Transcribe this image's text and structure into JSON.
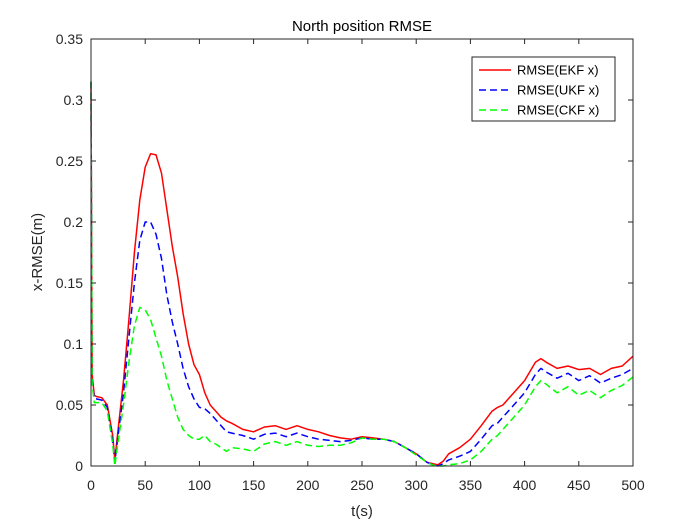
{
  "chart_data": {
    "type": "line",
    "title": "North position RMSE",
    "xlabel": "t(s)",
    "ylabel": "x-RMSE(m)",
    "xlim": [
      0,
      500
    ],
    "ylim": [
      0,
      0.35
    ],
    "xticks": [
      0,
      50,
      100,
      150,
      200,
      250,
      300,
      350,
      400,
      450,
      500
    ],
    "xtick_labels": [
      "0",
      "50",
      "100",
      "150",
      "200",
      "250",
      "300",
      "350",
      "400",
      "450",
      "500"
    ],
    "yticks": [
      0,
      0.05,
      0.1,
      0.15,
      0.2,
      0.25,
      0.3,
      0.35
    ],
    "ytick_labels": [
      "0",
      "0.05",
      "0.1",
      "0.15",
      "0.2",
      "0.25",
      "0.3",
      "0.35"
    ],
    "grid": false,
    "legend_position": "top-right",
    "series": [
      {
        "name": "RMSE(EKF x)",
        "color": "#ff0000",
        "dash": "solid",
        "x": [
          0,
          1,
          3,
          5,
          10,
          15,
          20,
          22,
          25,
          30,
          35,
          40,
          45,
          50,
          55,
          60,
          65,
          70,
          75,
          80,
          85,
          90,
          95,
          100,
          105,
          110,
          115,
          120,
          125,
          130,
          140,
          150,
          160,
          170,
          180,
          190,
          200,
          210,
          220,
          230,
          240,
          250,
          260,
          270,
          280,
          290,
          300,
          310,
          315,
          320,
          325,
          330,
          340,
          350,
          360,
          370,
          375,
          380,
          390,
          400,
          410,
          415,
          420,
          430,
          440,
          450,
          460,
          470,
          480,
          490,
          500
        ],
        "y": [
          0.315,
          0.075,
          0.058,
          0.057,
          0.056,
          0.05,
          0.025,
          0.005,
          0.03,
          0.07,
          0.12,
          0.175,
          0.218,
          0.245,
          0.256,
          0.255,
          0.24,
          0.21,
          0.18,
          0.155,
          0.125,
          0.1,
          0.083,
          0.075,
          0.06,
          0.05,
          0.045,
          0.04,
          0.037,
          0.035,
          0.03,
          0.028,
          0.032,
          0.033,
          0.03,
          0.033,
          0.03,
          0.028,
          0.025,
          0.023,
          0.022,
          0.024,
          0.023,
          0.022,
          0.02,
          0.015,
          0.01,
          0.003,
          0.002,
          0.001,
          0.004,
          0.01,
          0.015,
          0.022,
          0.033,
          0.045,
          0.048,
          0.05,
          0.06,
          0.07,
          0.085,
          0.088,
          0.085,
          0.08,
          0.082,
          0.079,
          0.08,
          0.075,
          0.08,
          0.082,
          0.09
        ]
      },
      {
        "name": "RMSE(UKF x)",
        "color": "#0000ff",
        "dash": "dashed",
        "x": [
          0,
          1,
          3,
          5,
          10,
          15,
          20,
          22,
          25,
          30,
          35,
          40,
          45,
          50,
          55,
          60,
          65,
          70,
          75,
          80,
          85,
          90,
          95,
          100,
          105,
          110,
          115,
          120,
          125,
          130,
          140,
          150,
          160,
          170,
          180,
          190,
          200,
          210,
          220,
          230,
          240,
          250,
          260,
          270,
          280,
          290,
          300,
          310,
          315,
          320,
          325,
          330,
          340,
          350,
          360,
          370,
          375,
          380,
          390,
          400,
          410,
          415,
          420,
          430,
          440,
          450,
          460,
          470,
          480,
          490,
          500
        ],
        "y": [
          0.315,
          0.07,
          0.055,
          0.055,
          0.054,
          0.048,
          0.02,
          0.003,
          0.025,
          0.06,
          0.105,
          0.15,
          0.185,
          0.2,
          0.2,
          0.19,
          0.17,
          0.14,
          0.118,
          0.1,
          0.08,
          0.065,
          0.055,
          0.048,
          0.047,
          0.043,
          0.038,
          0.033,
          0.028,
          0.027,
          0.025,
          0.022,
          0.026,
          0.027,
          0.024,
          0.027,
          0.024,
          0.022,
          0.021,
          0.02,
          0.021,
          0.023,
          0.022,
          0.022,
          0.02,
          0.015,
          0.01,
          0.003,
          0.001,
          0.0,
          0.002,
          0.005,
          0.008,
          0.012,
          0.022,
          0.033,
          0.035,
          0.04,
          0.05,
          0.06,
          0.075,
          0.08,
          0.077,
          0.072,
          0.076,
          0.07,
          0.074,
          0.068,
          0.072,
          0.075,
          0.08
        ]
      },
      {
        "name": "RMSE(CKF x)",
        "color": "#00ff00",
        "dash": "dashed",
        "x": [
          0,
          1,
          3,
          5,
          10,
          15,
          20,
          22,
          25,
          30,
          35,
          40,
          45,
          50,
          55,
          60,
          65,
          70,
          75,
          80,
          85,
          90,
          95,
          100,
          105,
          110,
          115,
          120,
          125,
          130,
          140,
          150,
          160,
          170,
          180,
          190,
          200,
          210,
          220,
          230,
          240,
          250,
          260,
          270,
          280,
          290,
          300,
          310,
          315,
          320,
          325,
          330,
          340,
          350,
          360,
          370,
          375,
          380,
          390,
          400,
          410,
          415,
          420,
          430,
          440,
          450,
          460,
          470,
          480,
          490,
          500
        ],
        "y": [
          0.315,
          0.068,
          0.052,
          0.052,
          0.052,
          0.045,
          0.018,
          0.0,
          0.02,
          0.05,
          0.085,
          0.115,
          0.13,
          0.128,
          0.12,
          0.105,
          0.09,
          0.07,
          0.055,
          0.04,
          0.03,
          0.025,
          0.022,
          0.022,
          0.025,
          0.02,
          0.018,
          0.015,
          0.012,
          0.015,
          0.014,
          0.012,
          0.018,
          0.02,
          0.017,
          0.02,
          0.017,
          0.016,
          0.017,
          0.017,
          0.019,
          0.023,
          0.022,
          0.022,
          0.02,
          0.015,
          0.009,
          0.003,
          0.001,
          0.0,
          0.0,
          0.001,
          0.002,
          0.005,
          0.012,
          0.022,
          0.025,
          0.03,
          0.04,
          0.05,
          0.065,
          0.07,
          0.067,
          0.06,
          0.065,
          0.058,
          0.062,
          0.056,
          0.062,
          0.066,
          0.073
        ]
      }
    ]
  }
}
